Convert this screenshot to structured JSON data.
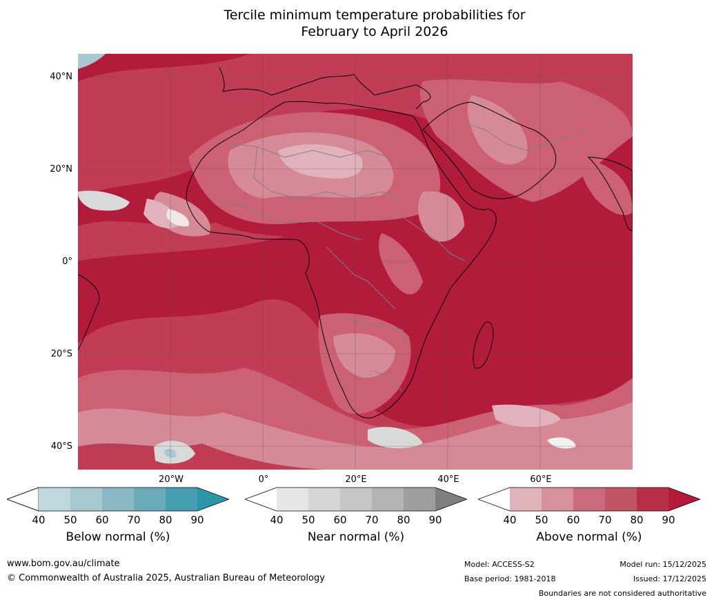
{
  "title_line1": "Tercile minimum temperature probabilities for",
  "title_line2": "February to April 2026",
  "map": {
    "lat_labels": [
      "40°N",
      "20°N",
      "0°",
      "20°S",
      "40°S"
    ],
    "lon_labels": [
      "20°W",
      "0°",
      "20°E",
      "40°E",
      "60°E"
    ],
    "colors": {
      "ocean_above": "#b31b3a",
      "level80": "#c13c55",
      "level70": "#cb6173",
      "level60": "#d68a97",
      "level50": "#e1b2bb",
      "near": "#d9d9d9",
      "below": "#a8c9d1",
      "coast": "#000000",
      "border": "#808080",
      "grid": "#555555"
    }
  },
  "colorbars": [
    {
      "label": "Below normal (%)",
      "ticks": [
        "40",
        "50",
        "60",
        "70",
        "80",
        "90"
      ],
      "colors": [
        "#ffffff",
        "#c0d7de",
        "#a7c8cf",
        "#8bb8c3",
        "#6aaab9",
        "#469fb0",
        "#2d95aa"
      ]
    },
    {
      "label": "Near normal (%)",
      "ticks": [
        "40",
        "50",
        "60",
        "70",
        "80",
        "90"
      ],
      "colors": [
        "#ffffff",
        "#e6e6e6",
        "#d6d6d6",
        "#c6c6c6",
        "#b3b3b3",
        "#9e9e9e",
        "#7f7f7f"
      ]
    },
    {
      "label": "Above normal (%)",
      "ticks": [
        "40",
        "50",
        "60",
        "70",
        "80",
        "90"
      ],
      "colors": [
        "#ffffff",
        "#e1b4bc",
        "#d6919c",
        "#cb6b79",
        "#c15465",
        "#b82f48",
        "#b31b3a"
      ]
    }
  ],
  "footer": {
    "website": "www.bom.gov.au/climate",
    "copyright": "© Commonwealth of Australia 2025, Australian Bureau of Meteorology",
    "model": "Model: ACCESS-S2",
    "base_period": "Base period: 1981-2018",
    "model_run": "Model run: 15/12/2025",
    "issued": "Issued: 17/12/2025",
    "disclaimer": "Boundaries are not considered authoritative"
  }
}
